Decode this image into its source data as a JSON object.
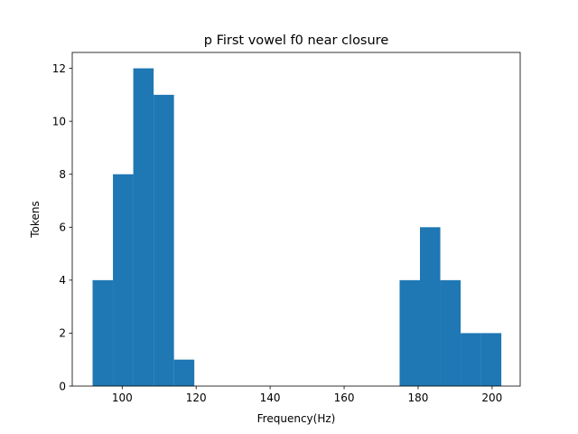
{
  "chart_data": {
    "type": "bar",
    "title": "p First vowel f0 near closure",
    "xlabel": "Frequency(Hz)",
    "ylabel": "Tokens",
    "xlim": [
      86.5,
      207.6
    ],
    "ylim": [
      0,
      12.6
    ],
    "xticks": [
      100,
      120,
      140,
      160,
      180,
      200
    ],
    "yticks": [
      0,
      2,
      4,
      6,
      8,
      10,
      12
    ],
    "grid": false,
    "bar_color": "#1f77b4",
    "bins": [
      {
        "x0": 92.0,
        "x1": 97.5,
        "count": 4
      },
      {
        "x0": 97.5,
        "x1": 103.0,
        "count": 8
      },
      {
        "x0": 103.0,
        "x1": 108.5,
        "count": 12
      },
      {
        "x0": 108.5,
        "x1": 114.0,
        "count": 11
      },
      {
        "x0": 114.0,
        "x1": 119.5,
        "count": 1
      },
      {
        "x0": 175.0,
        "x1": 180.5,
        "count": 4
      },
      {
        "x0": 180.5,
        "x1": 186.0,
        "count": 6
      },
      {
        "x0": 186.0,
        "x1": 191.5,
        "count": 4
      },
      {
        "x0": 191.5,
        "x1": 197.0,
        "count": 2
      },
      {
        "x0": 197.0,
        "x1": 202.5,
        "count": 2
      }
    ]
  }
}
